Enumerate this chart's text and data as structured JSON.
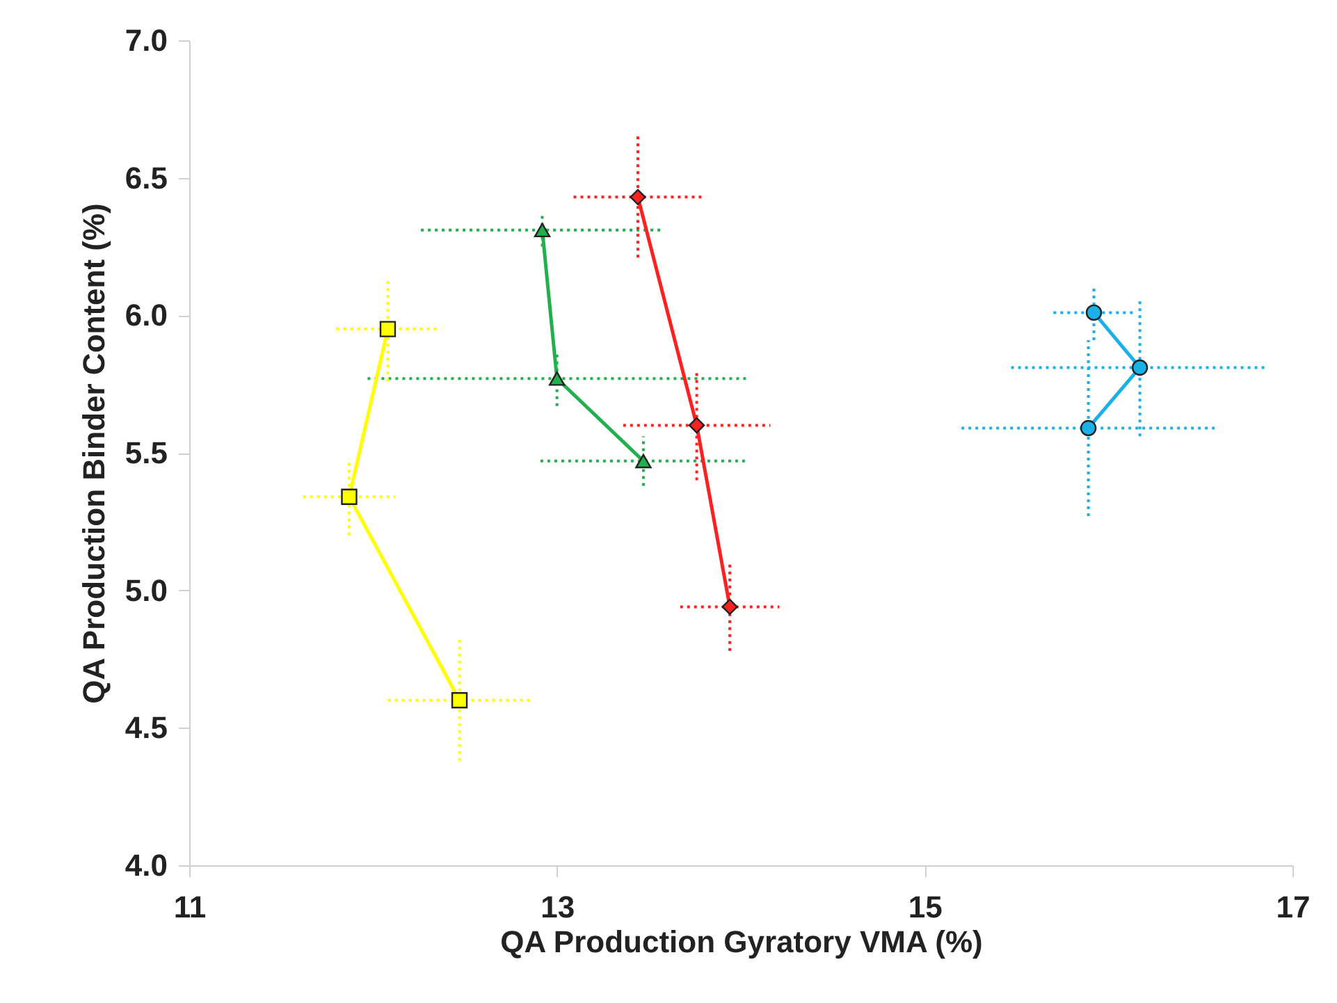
{
  "chart_data": {
    "type": "line",
    "xlabel": "QA Production Gyratory VMA (%)",
    "ylabel": "QA Production Binder Content (%)",
    "xlim": [
      11,
      17
    ],
    "xticks": [
      11,
      13,
      15,
      17
    ],
    "ylim": [
      4.0,
      7.0
    ],
    "yticks": [
      {
        "value": 4,
        "label": "4.0"
      },
      {
        "value": 4.5,
        "label": "4.5"
      },
      {
        "value": 5,
        "label": "5.0"
      },
      {
        "value": 5.5,
        "label": "5.5"
      },
      {
        "value": 6,
        "label": "6.0"
      },
      {
        "value": 6.5,
        "label": "6.5"
      },
      {
        "value": 7,
        "label": "7.0"
      }
    ],
    "grid": false,
    "legend": false,
    "series": [
      {
        "color": "#ffff00",
        "marker": "square",
        "x": [
          12.08,
          11.87,
          12.47
        ],
        "values": [
          5.95,
          5.34,
          4.6
        ],
        "xerrors": [
          0.28,
          0.25,
          0.39
        ],
        "errors": [
          0.19,
          0.14,
          0.22
        ]
      },
      {
        "color": "#22b04f",
        "marker": "triangle",
        "x": [
          12.92,
          13.0,
          13.47
        ],
        "values": [
          6.31,
          5.77,
          5.47
        ],
        "xerrors": [
          0.66,
          1.03,
          0.56
        ],
        "errors": [
          0.06,
          0.1,
          0.09
        ]
      },
      {
        "color": "#ff2020",
        "marker": "diamond",
        "x": [
          13.44,
          13.76,
          13.94
        ],
        "values": [
          6.43,
          5.6,
          4.94
        ],
        "xerrors": [
          0.35,
          0.4,
          0.27
        ],
        "errors": [
          0.22,
          0.2,
          0.16
        ]
      },
      {
        "color": "#1ab0e8",
        "marker": "circle",
        "x": [
          15.92,
          16.17,
          15.89
        ],
        "values": [
          6.01,
          5.81,
          5.59
        ],
        "xerrors": [
          0.22,
          0.7,
          0.69
        ],
        "errors": [
          0.1,
          0.25,
          0.32
        ]
      }
    ]
  }
}
